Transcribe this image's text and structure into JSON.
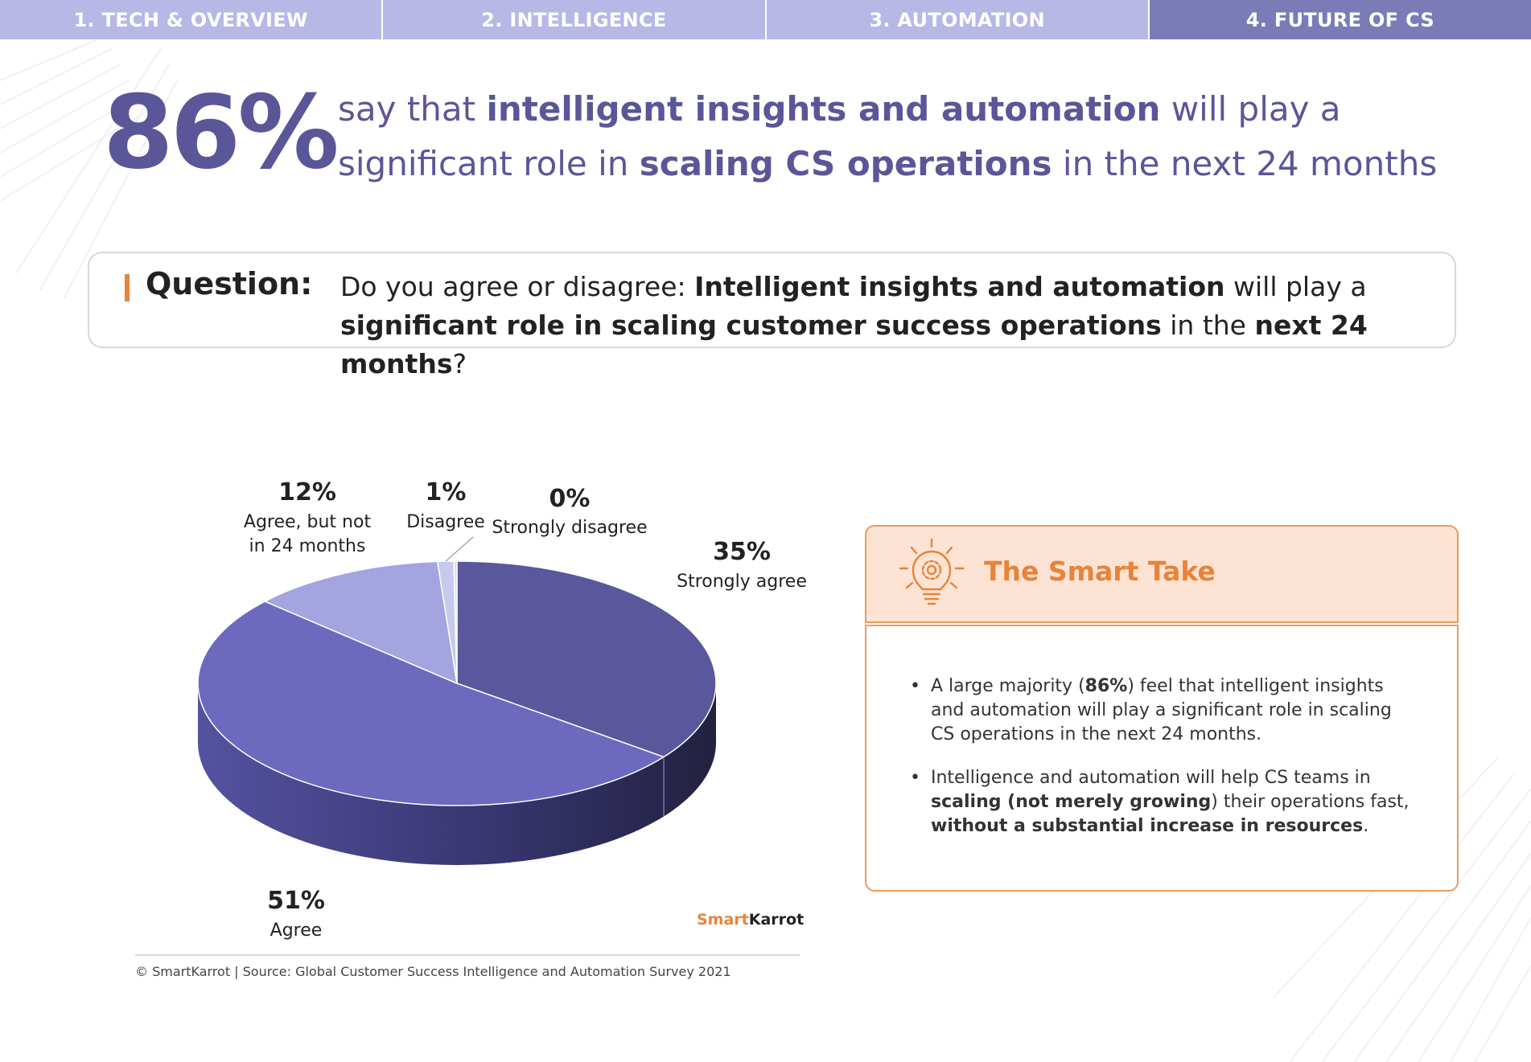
{
  "colors": {
    "tab_bg": "#b8b8e6",
    "tab_active_bg": "#7b7bb8",
    "primary": "#5a5698",
    "accent_orange": "#e8833a",
    "take_head_bg": "#fde3d3",
    "take_border": "#ee9a5c"
  },
  "tabs": [
    {
      "label": "1. TECH & OVERVIEW",
      "active": false
    },
    {
      "label": "2. INTELLIGENCE",
      "active": false
    },
    {
      "label": "3. AUTOMATION",
      "active": false
    },
    {
      "label": "4. FUTURE OF CS",
      "active": true
    }
  ],
  "hero": {
    "stat": "86%",
    "line1_pre": "say that ",
    "line1_bold": "intelligent insights and automation",
    "line1_post": " will play a",
    "line2_pre": "significant role in ",
    "line2_bold": "scaling CS operations",
    "line2_post": " in the next 24 months"
  },
  "question": {
    "label": "Question:",
    "p1": "Do you agree or disagree: ",
    "b1": "Intelligent insights and automation",
    "p2": " will play a ",
    "b2": "significant role in scaling customer success operations",
    "p3": " in the ",
    "b3": "next 24 months",
    "p4": "?"
  },
  "chart_data": {
    "type": "pie",
    "style": "3d",
    "slices": [
      {
        "label": "Strongly agree",
        "value": 35,
        "display": "35%",
        "color": "#5b579c"
      },
      {
        "label": "Agree",
        "value": 51,
        "display": "51%",
        "color": "#6c69bf"
      },
      {
        "label": "Agree, but not in 24 months",
        "label_lines": [
          "Agree, but not",
          "in 24 months"
        ],
        "value": 12,
        "display": "12%",
        "color": "#a4a4e0"
      },
      {
        "label": "Disagree",
        "value": 1,
        "display": "1%",
        "color": "#c9c9ee"
      },
      {
        "label": "Strongly disagree",
        "value": 0,
        "display": "0%",
        "color": "#dcdcf5"
      }
    ]
  },
  "branding": {
    "name_a": "Smart",
    "name_b": "Karrot"
  },
  "source": "© SmartKarrot | Source: Global Customer Success Intelligence and Automation Survey 2021",
  "smart_take": {
    "title": "The Smart Take",
    "b1_pre": "A large majority (",
    "b1_bold": "86%",
    "b1_post": ") feel that intelligent insights and automation will play a significant role in scaling CS operations in the next 24 months.",
    "b2_pre": "Intelligence and automation will help CS teams in ",
    "b2_bold1": "scaling (not merely growing",
    "b2_mid": ") their operations fast, ",
    "b2_bold2": "without a substantial increase in resources",
    "b2_post": "."
  }
}
